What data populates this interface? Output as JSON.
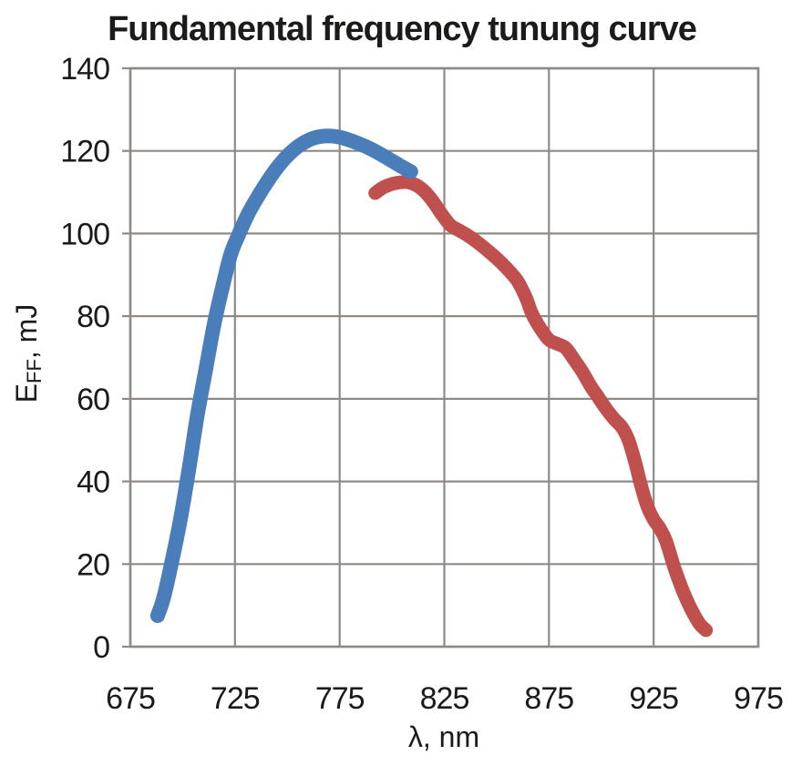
{
  "chart_data": {
    "type": "line",
    "title": "Fundamental frequency tunung curve",
    "xlabel": "λ, nm",
    "ylabel": "EFF, mJ",
    "ylabel_parts": {
      "main": "E",
      "sub": "FF",
      "rest": ", mJ"
    },
    "xlim": [
      675,
      975
    ],
    "ylim": [
      0,
      140
    ],
    "x_ticks": [
      675,
      725,
      775,
      825,
      875,
      925,
      975
    ],
    "y_ticks": [
      0,
      20,
      40,
      60,
      80,
      100,
      120,
      140
    ],
    "grid": true,
    "legend": "none",
    "grid_color": "#8F8A85",
    "background": "#ffffff",
    "series": [
      {
        "name": "red-curve",
        "color": "#C0504D",
        "stroke_width": 15,
        "points": [
          [
            792,
            109.8
          ],
          [
            796,
            111.2
          ],
          [
            800,
            112.0
          ],
          [
            804,
            112.4
          ],
          [
            808,
            112.4
          ],
          [
            812,
            111.6
          ],
          [
            816,
            110.0
          ],
          [
            820,
            107.5
          ],
          [
            824,
            104.5
          ],
          [
            828,
            102.0
          ],
          [
            832,
            100.8
          ],
          [
            836,
            99.6
          ],
          [
            840,
            98.2
          ],
          [
            845,
            96.2
          ],
          [
            850,
            94.0
          ],
          [
            855,
            91.5
          ],
          [
            860,
            88.5
          ],
          [
            864,
            84.5
          ],
          [
            867,
            80.5
          ],
          [
            871,
            77.0
          ],
          [
            875,
            74.3
          ],
          [
            879,
            73.3
          ],
          [
            883,
            72.3
          ],
          [
            887,
            69.5
          ],
          [
            891,
            66.5
          ],
          [
            895,
            63.0
          ],
          [
            898,
            60.8
          ],
          [
            902,
            57.8
          ],
          [
            906,
            55.2
          ],
          [
            910,
            53.0
          ],
          [
            913,
            50.0
          ],
          [
            916,
            45.0
          ],
          [
            919,
            39.0
          ],
          [
            922,
            34.0
          ],
          [
            925,
            30.8
          ],
          [
            928,
            28.6
          ],
          [
            931,
            25.5
          ],
          [
            935,
            19.0
          ],
          [
            939,
            13.5
          ],
          [
            943,
            9.0
          ],
          [
            947,
            5.5
          ],
          [
            950,
            4.0
          ]
        ]
      },
      {
        "name": "blue-curve",
        "color": "#4A7EBB",
        "stroke_width": 16,
        "points": [
          [
            688,
            7.5
          ],
          [
            691,
            12.0
          ],
          [
            695,
            21.0
          ],
          [
            699,
            31.0
          ],
          [
            703,
            43.0
          ],
          [
            707,
            56.0
          ],
          [
            711,
            67.0
          ],
          [
            715,
            78.0
          ],
          [
            719,
            87.0
          ],
          [
            723,
            95.0
          ],
          [
            727,
            100.0
          ],
          [
            731,
            104.5
          ],
          [
            736,
            109.0
          ],
          [
            741,
            113.0
          ],
          [
            746,
            116.5
          ],
          [
            751,
            119.3
          ],
          [
            756,
            121.4
          ],
          [
            761,
            122.8
          ],
          [
            766,
            123.5
          ],
          [
            771,
            123.6
          ],
          [
            776,
            123.2
          ],
          [
            781,
            122.4
          ],
          [
            786,
            121.4
          ],
          [
            791,
            120.2
          ],
          [
            796,
            118.8
          ],
          [
            801,
            117.3
          ],
          [
            805,
            116.1
          ],
          [
            809,
            115.0
          ]
        ]
      }
    ]
  }
}
